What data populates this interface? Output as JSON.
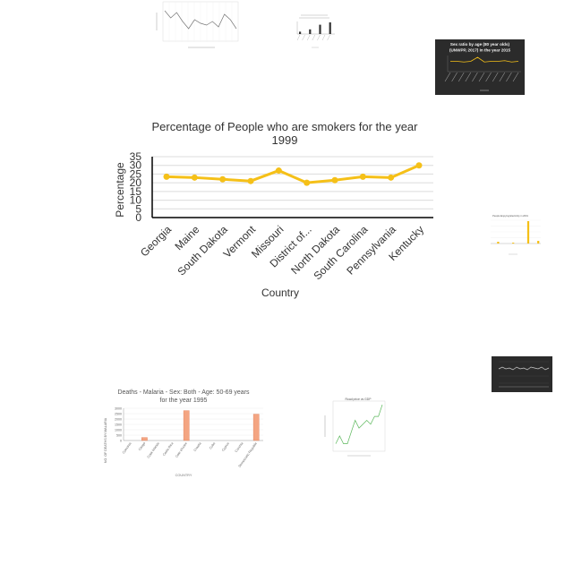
{
  "chart_data": [
    {
      "type": "line",
      "title": "Percentage of People who are smokers for the year 1999",
      "title_lines": [
        "Percentage of People who are smokers for the year",
        "1999"
      ],
      "xlabel": "Country",
      "ylabel": "Percentage",
      "categories": [
        "Georgia",
        "Maine",
        "South Dakota",
        "Vermont",
        "Missouri",
        "District of...",
        "North Dakota",
        "South Carolina",
        "Pennsylvania",
        "Kentucky"
      ],
      "values": [
        23.5,
        23,
        22,
        21,
        27,
        20,
        21.5,
        23.5,
        23,
        30
      ],
      "ylim": [
        0,
        35
      ],
      "yticks": [
        "0",
        "5",
        "10",
        "15",
        "20",
        "25",
        "30",
        "35"
      ],
      "grid": true,
      "color": "#f5c018"
    },
    {
      "type": "bar",
      "title_lines": [
        "Deaths - Malaria - Sex: Both - Age: 50-69 years",
        "for the year 1995"
      ],
      "xlabel": "COUNTRY",
      "ylabel": "NO. OF DEATHS BY MALARIA",
      "categories": [
        "Comoros",
        "Congo",
        "Cook Islands",
        "Costa Rica",
        "Cote d'Ivoire",
        "Croatia",
        "Cuba",
        "Cyprus",
        "Czechia",
        "Democratic Republic"
      ],
      "values": [
        0,
        280,
        0,
        0,
        2780,
        0,
        0,
        0,
        0,
        2450
      ],
      "ylim": [
        0,
        3000
      ],
      "yticks": [
        "0",
        "500",
        "1000",
        "1500",
        "2000",
        "2500",
        "3000"
      ],
      "color": "#f4a582"
    },
    {
      "type": "line",
      "title_lines": [
        "Sex ratio by age (80 year olds)",
        "(UNWPP, 2017) in the year 2015"
      ],
      "color": "#f5c018",
      "values": [
        5,
        5,
        4.5,
        5,
        8,
        4.5,
        5,
        5,
        5.5,
        4.5,
        5
      ]
    },
    {
      "type": "line",
      "title_lines": [
        "Road price vs GDP"
      ],
      "color": "#5cb85c",
      "values": [
        1,
        3,
        1,
        1,
        4,
        7,
        5,
        6,
        7,
        6,
        8,
        8,
        11
      ]
    },
    {
      "type": "line",
      "color": "#c8c8c8",
      "values": [
        14,
        12,
        14,
        13,
        15,
        12,
        14,
        13,
        15,
        12,
        13,
        14,
        12,
        15,
        13
      ]
    },
    {
      "type": "bar",
      "color": "#333333",
      "values": [
        1,
        0,
        2,
        0,
        4,
        0,
        5
      ]
    },
    {
      "type": "bar",
      "title_lines": [
        "People Enjoying Electricity in 2001"
      ],
      "color": "#f5c018",
      "values": [
        0,
        2,
        0,
        0,
        1,
        0,
        0,
        25,
        0,
        3
      ]
    }
  ]
}
